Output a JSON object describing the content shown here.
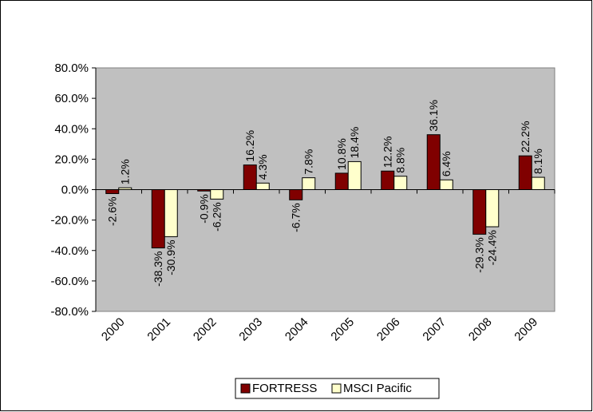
{
  "chart_data": {
    "type": "bar",
    "title": "",
    "xlabel": "",
    "ylabel": "",
    "categories": [
      "2000",
      "2001",
      "2002",
      "2003",
      "2004",
      "2005",
      "2006",
      "2007",
      "2008",
      "2009"
    ],
    "series": [
      {
        "name": "FORTRESS",
        "color": "#800000",
        "values": [
          -2.6,
          -38.3,
          -0.9,
          16.2,
          -6.7,
          10.8,
          12.2,
          36.1,
          -29.3,
          22.2
        ],
        "labels": [
          "-2.6%",
          "-38.3%",
          "-0.9%",
          "16.2%",
          "-6.7%",
          "10.8%",
          "12.2%",
          "36.1%",
          "-29.3%",
          "22.2%"
        ]
      },
      {
        "name": "MSCI Pacific",
        "color": "#FFFFCC",
        "values": [
          1.2,
          -30.9,
          -6.2,
          4.3,
          7.8,
          18.4,
          8.8,
          6.4,
          -24.4,
          8.1
        ],
        "labels": [
          "1.2%",
          "-30.9%",
          "-6.2%",
          "4.3%",
          "7.8%",
          "18.4%",
          "8.8%",
          "6.4%",
          "-24.4%",
          "8.1%"
        ]
      }
    ],
    "ylim": [
      -80,
      80
    ],
    "yticks": [
      80,
      60,
      40,
      20,
      0,
      -20,
      -40,
      -60,
      -80
    ],
    "ytick_labels": [
      "80.0%",
      "60.0%",
      "40.0%",
      "20.0%",
      "0.0%",
      "-20.0%",
      "-40.0%",
      "-60.0%",
      "-80.0%"
    ],
    "plot_background": "#C0C0C0",
    "grid": false,
    "legend_position": "bottom"
  }
}
